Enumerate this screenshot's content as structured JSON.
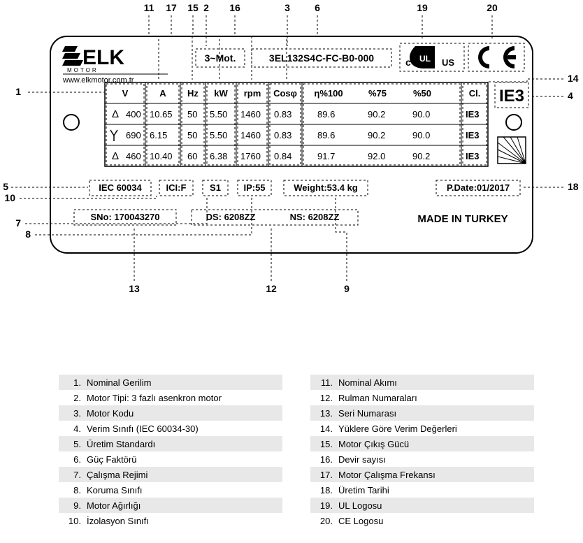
{
  "plate": {
    "logo_top": "ELK",
    "logo_sub": "MOTOR",
    "url": "www.elkmotor.com.tr",
    "motor_type": "3~Mot.",
    "motor_code": "3EL132S4C-FC-B0-000",
    "ul_c": "c",
    "ul_us": "US",
    "ie_badge": "IE3",
    "origin": "MADE IN TURKEY",
    "headers": [
      "V",
      "A",
      "Hz",
      "kW",
      "rpm",
      "Cosφ",
      "η%100",
      "%75",
      "%50",
      "Cl."
    ],
    "rows": [
      {
        "conn": "Δ",
        "v": "400",
        "a": "10.65",
        "hz": "50",
        "kw": "5.50",
        "rpm": "1460",
        "cos": "0.83",
        "e100": "89.6",
        "e75": "90.2",
        "e50": "90.0",
        "cl": "IE3"
      },
      {
        "conn": "Y",
        "v": "690",
        "a": "6.15",
        "hz": "50",
        "kw": "5.50",
        "rpm": "1460",
        "cos": "0.83",
        "e100": "89.6",
        "e75": "90.2",
        "e50": "90.0",
        "cl": "IE3"
      },
      {
        "conn": "Δ",
        "v": "460",
        "a": "10.40",
        "hz": "60",
        "kw": "6.38",
        "rpm": "1760",
        "cos": "0.84",
        "e100": "91.7",
        "e75": "92.0",
        "e50": "90.2",
        "cl": "IE3"
      }
    ],
    "iec": "IEC 60034",
    "ins": "ICI:F",
    "duty": "S1",
    "ip": "IP:55",
    "weight": "Weight:53.4 kg",
    "pdate": "P.Date:01/2017",
    "sno": "SNo: 170043270",
    "ds": "DS: 6208ZZ",
    "ns": "NS: 6208ZZ"
  },
  "callouts": {
    "1": "1",
    "2": "2",
    "3": "3",
    "4": "4",
    "5": "5",
    "6": "6",
    "7": "7",
    "8": "8",
    "9": "9",
    "10": "10",
    "11": "11",
    "12": "12",
    "13": "13",
    "14": "14",
    "15": "15",
    "16": "16",
    "17": "17",
    "18": "18",
    "19": "19",
    "20": "20"
  },
  "legend_left": [
    {
      "n": "1.",
      "t": "Nominal Gerilim"
    },
    {
      "n": "2.",
      "t": "Motor Tipi: 3 fazlı asenkron motor"
    },
    {
      "n": "3.",
      "t": "Motor Kodu"
    },
    {
      "n": "4.",
      "t": "Verim Sınıfı (IEC 60034-30)"
    },
    {
      "n": "5.",
      "t": "Üretim Standardı"
    },
    {
      "n": "6.",
      "t": "Güç Faktörü"
    },
    {
      "n": "7.",
      "t": "Çalışma Rejimi"
    },
    {
      "n": "8.",
      "t": "Koruma Sınıfı"
    },
    {
      "n": "9.",
      "t": "Motor Ağırlığı"
    },
    {
      "n": "10.",
      "t": "İzolasyon Sınıfı"
    }
  ],
  "legend_right": [
    {
      "n": "11.",
      "t": "Nominal Akımı"
    },
    {
      "n": "12.",
      "t": "Rulman Numaraları"
    },
    {
      "n": "13.",
      "t": "Seri Numarası"
    },
    {
      "n": "14.",
      "t": "Yüklere Göre Verim Değerleri"
    },
    {
      "n": "15.",
      "t": "Motor Çıkış Gücü"
    },
    {
      "n": "16.",
      "t": "Devir sayısı"
    },
    {
      "n": "17.",
      "t": "Motor Çalışma Frekansı"
    },
    {
      "n": "18.",
      "t": "Üretim Tarihi"
    },
    {
      "n": "19.",
      "t": "UL Logosu"
    },
    {
      "n": "20.",
      "t": "CE Logosu"
    }
  ],
  "style": {
    "plate_stroke": "#000",
    "dash": "3,3",
    "bg": "#fff",
    "shade": "#e8e8e8",
    "font_small": 11,
    "font_med": 13,
    "font_big": 18,
    "font_ie": 24
  }
}
